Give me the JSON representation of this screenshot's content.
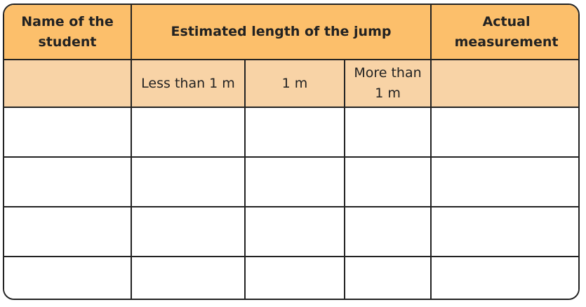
{
  "table": {
    "header": {
      "name_col": "Name of the student",
      "estimated_col": "Estimated length of the jump",
      "actual_col": "Actual measurement"
    },
    "subheader": {
      "less": "Less than 1 m",
      "equal": "1 m",
      "more": "More than 1 m"
    },
    "rows": [
      {
        "name": "",
        "less": "",
        "equal": "",
        "more": "",
        "actual": ""
      },
      {
        "name": "",
        "less": "",
        "equal": "",
        "more": "",
        "actual": ""
      },
      {
        "name": "",
        "less": "",
        "equal": "",
        "more": "",
        "actual": ""
      },
      {
        "name": "",
        "less": "",
        "equal": "",
        "more": "",
        "actual": ""
      }
    ],
    "colors": {
      "header_bg": "#fcbf6b",
      "subheader_bg": "#f8d3a6",
      "border": "#222222"
    }
  }
}
